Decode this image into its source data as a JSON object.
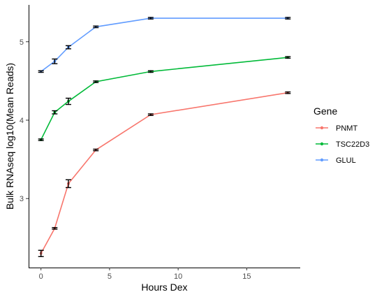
{
  "chart_data": {
    "type": "line",
    "xlabel": "Hours Dex",
    "ylabel": "Bulk RNAseq log10(Mean Reads)",
    "xlim": [
      -0.9,
      18.9
    ],
    "ylim": [
      2.12,
      5.47
    ],
    "x_ticks": [
      0,
      5,
      10,
      15
    ],
    "y_ticks": [
      3,
      4,
      5
    ],
    "grid": false,
    "legend": {
      "title": "Gene",
      "placement": "right"
    },
    "x": [
      0,
      1,
      2,
      4,
      8,
      18
    ],
    "series": [
      {
        "name": "PNMT",
        "color": "#F8766D",
        "values": [
          2.3,
          2.62,
          3.19,
          3.62,
          4.07,
          4.35
        ],
        "errors": [
          0.04,
          0.01,
          0.05,
          0.01,
          0.01,
          0.01
        ]
      },
      {
        "name": "TSC22D3",
        "color": "#00BA38",
        "values": [
          3.75,
          4.1,
          4.24,
          4.49,
          4.62,
          4.8
        ],
        "errors": [
          0.01,
          0.02,
          0.04,
          0.01,
          0.01,
          0.01
        ]
      },
      {
        "name": "GLUL",
        "color": "#619CFF",
        "values": [
          4.62,
          4.75,
          4.93,
          5.19,
          5.3,
          5.3
        ],
        "errors": [
          0.01,
          0.03,
          0.02,
          0.01,
          0.01,
          0.01
        ]
      }
    ]
  }
}
